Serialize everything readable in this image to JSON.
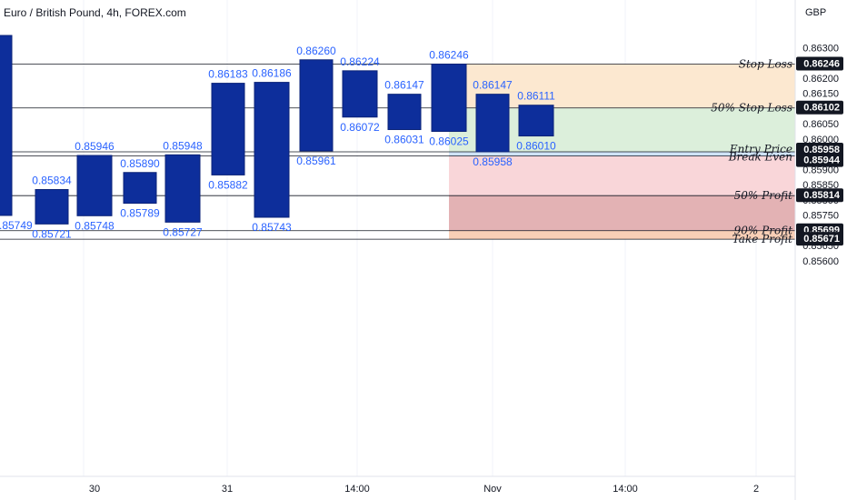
{
  "header": {
    "title": "Euro / British Pound, 4h, FOREX.com"
  },
  "colors": {
    "candle": "#0d2e9b",
    "value_label": "#2962ff",
    "stop_zone": "#fce8d0",
    "reward_zone": "#dcefdb",
    "entry_band": "#cfe3f7",
    "loss_zone": "#f9d6d9",
    "deep_loss_zone": "#e3b2b4",
    "target_zone": "#f9cfb6"
  },
  "chart_data": {
    "type": "candlestick",
    "currency": "GBP",
    "ylim": [
      0.856,
      0.8634
    ],
    "x_tick_labels": [
      "30",
      "31",
      "14:00",
      "Nov",
      "14:00",
      "2"
    ],
    "y_tick_labels": [
      "0.86300",
      "0.86250",
      "0.86200",
      "0.86150",
      "0.86100",
      "0.86050",
      "0.86000",
      "0.85950",
      "0.85900",
      "0.85850",
      "0.85800",
      "0.85750",
      "0.85700",
      "0.85650",
      "0.85600"
    ],
    "candles": [
      {
        "top": 0.8634,
        "bottom": 0.85749,
        "bottom_label": "0.85749"
      },
      {
        "top": 0.85834,
        "bottom": 0.85721,
        "top_label": "0.85834",
        "bottom_label": "0.85721"
      },
      {
        "top": 0.85946,
        "bottom": 0.85748,
        "top_label": "0.85946",
        "bottom_label": "0.85748"
      },
      {
        "top": 0.8589,
        "bottom": 0.85789,
        "top_label": "0.85890",
        "bottom_label": "0.85789"
      },
      {
        "top": 0.85948,
        "bottom": 0.85727,
        "top_label": "0.85948",
        "bottom_label": "0.85727"
      },
      {
        "top": 0.86183,
        "bottom": 0.85882,
        "top_label": "0.86183",
        "bottom_label": "0.85882"
      },
      {
        "top": 0.86186,
        "bottom": 0.85743,
        "top_label": "0.86186",
        "bottom_label": "0.85743"
      },
      {
        "top": 0.8626,
        "bottom": 0.85961,
        "top_label": "0.86260",
        "bottom_label": "0.85961"
      },
      {
        "top": 0.86224,
        "bottom": 0.86072,
        "top_label": "0.86224",
        "bottom_label": "0.86072"
      },
      {
        "top": 0.86147,
        "bottom": 0.86031,
        "top_label": "0.86147",
        "bottom_label": "0.86031"
      },
      {
        "top": 0.86246,
        "bottom": 0.86025,
        "top_label": "0.86246",
        "bottom_label": "0.86025"
      },
      {
        "top": 0.86147,
        "bottom": 0.85958,
        "top_label": "0.86147",
        "bottom_label": "0.85958"
      },
      {
        "top": 0.86111,
        "bottom": 0.8601,
        "top_label": "0.86111",
        "bottom_label": "0.86010"
      }
    ],
    "levels": [
      {
        "name": "Stop Loss",
        "value": 0.86246,
        "price_label": "0.86246"
      },
      {
        "name": "50% Stop Loss",
        "value": 0.86102,
        "price_label": "0.86102"
      },
      {
        "name": "Entry Price",
        "value": 0.85958,
        "price_label": "0.85958"
      },
      {
        "name": "Break Even",
        "value": 0.85944,
        "price_label": "0.85944"
      },
      {
        "name": "50% Profit",
        "value": 0.85814,
        "price_label": "0.85814"
      },
      {
        "name": "90% Profit",
        "value": 0.85699,
        "price_label": "0.85699"
      },
      {
        "name": "Take Profit",
        "value": 0.85671,
        "price_label": "0.85671"
      }
    ],
    "zones": [
      {
        "from": 0.86246,
        "to": 0.86102,
        "color_key": "stop_zone"
      },
      {
        "from": 0.86102,
        "to": 0.85958,
        "color_key": "reward_zone"
      },
      {
        "from": 0.85958,
        "to": 0.85944,
        "color_key": "entry_band"
      },
      {
        "from": 0.85944,
        "to": 0.85814,
        "color_key": "loss_zone"
      },
      {
        "from": 0.85814,
        "to": 0.85699,
        "color_key": "deep_loss_zone"
      },
      {
        "from": 0.85699,
        "to": 0.85671,
        "color_key": "target_zone"
      }
    ]
  }
}
